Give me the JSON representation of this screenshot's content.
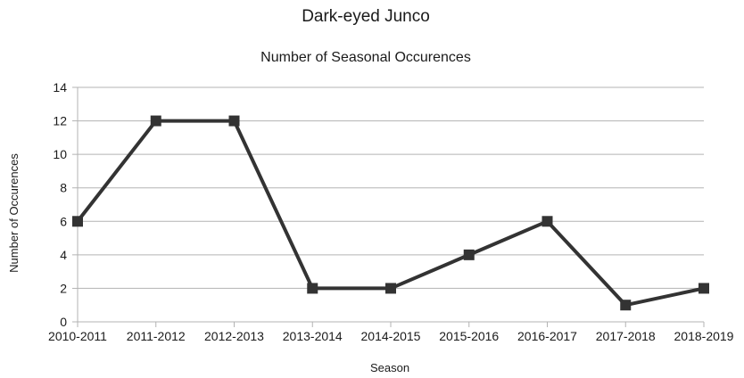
{
  "chart_data": {
    "type": "line",
    "title": "Dark-eyed Junco",
    "subtitle": "Number of Seasonal Occurences",
    "xlabel": "Season",
    "ylabel": "Number of Occurences",
    "categories": [
      "2010-2011",
      "2011-2012",
      "2012-2013",
      "2013-2014",
      "2014-2015",
      "2015-2016",
      "2016-2017",
      "2017-2018",
      "2018-2019"
    ],
    "series": [
      {
        "values": [
          6,
          12,
          12,
          2,
          2,
          4,
          6,
          1,
          2
        ]
      }
    ],
    "ylim": [
      0,
      14
    ],
    "yticks": [
      0,
      2,
      4,
      6,
      8,
      10,
      12,
      14
    ],
    "grid": true,
    "legend": "none",
    "colors": {
      "line": "#333333",
      "marker": "#333333",
      "grid": "#b3b3b3",
      "axis": "#b3b3b3"
    }
  }
}
